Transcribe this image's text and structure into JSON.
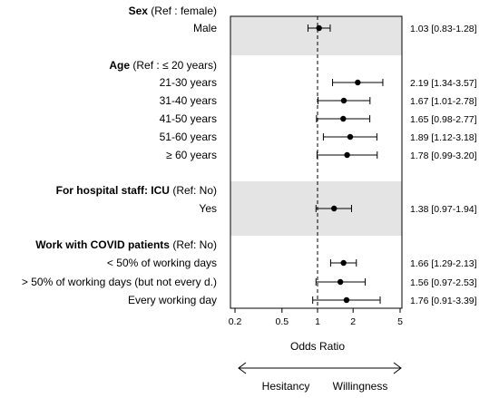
{
  "chart_data": {
    "type": "forest",
    "xlabel": "Odds Ratio",
    "xscale": "log",
    "xlim": [
      0.18,
      5.5
    ],
    "xticks": [
      "0.2",
      "0.5",
      "1",
      "2",
      "5"
    ],
    "reference_line": 1,
    "direction_labels": {
      "left": "Hesitancy",
      "right": "Willingness"
    },
    "groups": [
      {
        "title_bold": "Sex",
        "title_rest": " (Ref : female)",
        "shaded": true,
        "rows": [
          {
            "label": "Male",
            "or": 1.03,
            "lo": 0.83,
            "hi": 1.28,
            "text": "1.03 [0.83-1.28]"
          }
        ]
      },
      {
        "title_bold": "Age",
        "title_rest": " (Ref : ≤ 20 years)",
        "shaded": false,
        "rows": [
          {
            "label": "21-30 years",
            "or": 2.19,
            "lo": 1.34,
            "hi": 3.57,
            "text": "2.19 [1.34-3.57]"
          },
          {
            "label": "31-40 years",
            "or": 1.67,
            "lo": 1.01,
            "hi": 2.78,
            "text": "1.67 [1.01-2.78]"
          },
          {
            "label": "41-50 years",
            "or": 1.65,
            "lo": 0.98,
            "hi": 2.77,
            "text": "1.65 [0.98-2.77]"
          },
          {
            "label": "51-60 years",
            "or": 1.89,
            "lo": 1.12,
            "hi": 3.18,
            "text": "1.89 [1.12-3.18]"
          },
          {
            "label": "≥ 60 years",
            "or": 1.78,
            "lo": 0.99,
            "hi": 3.2,
            "text": "1.78 [0.99-3.20]"
          }
        ]
      },
      {
        "title_bold": "For hospital staff: ICU",
        "title_rest": " (Ref: No)",
        "shaded": true,
        "rows": [
          {
            "label": "Yes",
            "or": 1.38,
            "lo": 0.97,
            "hi": 1.94,
            "text": "1.38 [0.97-1.94]"
          }
        ]
      },
      {
        "title_bold": "Work with COVID patients",
        "title_rest": " (Ref: No)",
        "shaded": false,
        "rows": [
          {
            "label": "< 50% of working days",
            "or": 1.66,
            "lo": 1.29,
            "hi": 2.13,
            "text": "1.66 [1.29-2.13]"
          },
          {
            "label": "> 50% of working days (but not every d.)",
            "or": 1.56,
            "lo": 0.97,
            "hi": 2.53,
            "text": "1.56 [0.97-2.53]"
          },
          {
            "label": "Every working day",
            "or": 1.76,
            "lo": 0.91,
            "hi": 3.39,
            "text": "1.76 [0.91-3.39]"
          }
        ]
      }
    ]
  }
}
